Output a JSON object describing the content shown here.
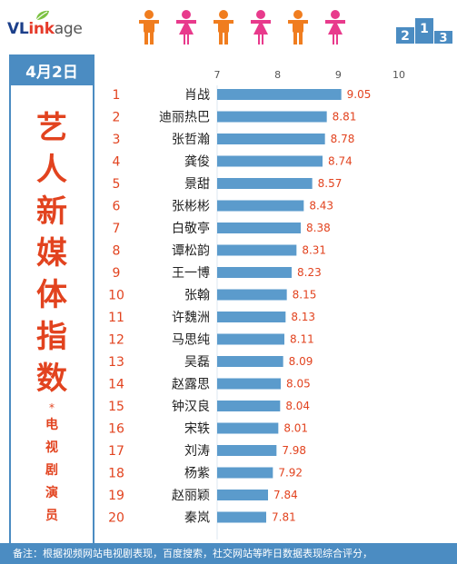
{
  "brand": {
    "part1": "VL",
    "part2": "ink",
    "part3": "age"
  },
  "date": "4月2日",
  "side_title": [
    "艺",
    "人",
    "新",
    "媒",
    "体",
    "指",
    "数"
  ],
  "side_star": "*",
  "side_subtitle": [
    "电",
    "视",
    "剧",
    "演",
    "员"
  ],
  "people_colors": [
    "#f07d1f",
    "#e83a8c",
    "#f07d1f",
    "#e83a8c",
    "#f07d1f",
    "#e83a8c"
  ],
  "podium_numbers": [
    "2",
    "1",
    "3"
  ],
  "colors": {
    "bar": "#5b9bcc",
    "accent": "#4b8cc2",
    "value": "#e2431f",
    "rank": "#e2431f",
    "title": "#e2431f"
  },
  "footer": "备注：根据视频网站电视剧表现，百度搜索，社交网站等昨日数据表现综合评分，",
  "chart_data": {
    "type": "bar",
    "orientation": "horizontal",
    "xlim": [
      7,
      10
    ],
    "xticks": [
      "7",
      "8",
      "9",
      "10"
    ],
    "ranks": [
      "1",
      "2",
      "3",
      "4",
      "5",
      "6",
      "7",
      "8",
      "9",
      "10",
      "11",
      "12",
      "13",
      "14",
      "15",
      "16",
      "17",
      "18",
      "19",
      "20"
    ],
    "categories": [
      "肖战",
      "迪丽热巴",
      "张哲瀚",
      "龚俊",
      "景甜",
      "张彬彬",
      "白敬亭",
      "谭松韵",
      "王一博",
      "张翰",
      "许魏洲",
      "马思纯",
      "吴磊",
      "赵露思",
      "钟汉良",
      "宋轶",
      "刘涛",
      "杨紫",
      "赵丽颖",
      "秦岚"
    ],
    "values": [
      9.05,
      8.81,
      8.78,
      8.74,
      8.57,
      8.43,
      8.38,
      8.31,
      8.23,
      8.15,
      8.13,
      8.11,
      8.09,
      8.05,
      8.04,
      8.01,
      7.98,
      7.92,
      7.84,
      7.81
    ],
    "value_labels": [
      "9.05",
      "8.81",
      "8.78",
      "8.74",
      "8.57",
      "8.43",
      "8.38",
      "8.31",
      "8.23",
      "8.15",
      "8.13",
      "8.11",
      "8.09",
      "8.05",
      "8.04",
      "8.01",
      "7.98",
      "7.92",
      "7.84",
      "7.81"
    ]
  }
}
